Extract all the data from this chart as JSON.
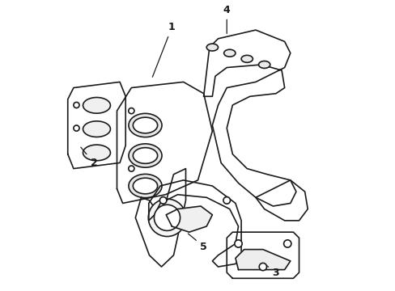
{
  "title": "",
  "background_color": "#ffffff",
  "line_color": "#1a1a1a",
  "line_width": 1.2,
  "figsize": [
    4.89,
    3.6
  ],
  "dpi": 100
}
